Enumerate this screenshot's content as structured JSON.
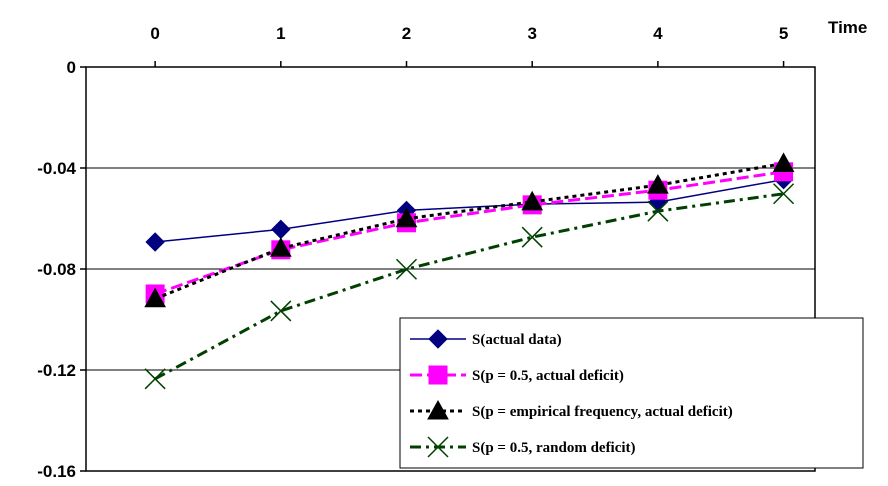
{
  "chart_data": {
    "type": "line",
    "title": "",
    "xlabel": "Time",
    "ylabel": "",
    "x": [
      0,
      1,
      2,
      3,
      4,
      5
    ],
    "x_tick_labels": [
      "0",
      "1",
      "2",
      "3",
      "4",
      "5"
    ],
    "y_tick_labels": [
      "0",
      "-0.04",
      "-0.08",
      "-0.12",
      "-0.16"
    ],
    "y_ticks": [
      0,
      -0.04,
      -0.08,
      -0.12,
      -0.16
    ],
    "xlim": [
      -0.55,
      5.25
    ],
    "ylim": [
      -0.16,
      0
    ],
    "x_axis_position": "top",
    "grid": "horizontal",
    "legend_position": "bottom-right",
    "series": [
      {
        "name": "S(actual data)",
        "values": [
          -0.0693,
          -0.0643,
          -0.0568,
          -0.0543,
          -0.0535,
          -0.0446
        ],
        "color": "#000080",
        "line": "solid",
        "marker": "diamond"
      },
      {
        "name": "S(p = 0.5, actual deficit)",
        "values": [
          -0.0899,
          -0.0724,
          -0.0617,
          -0.0546,
          -0.0488,
          -0.0415
        ],
        "color": "#FF00FF",
        "line": "dashed",
        "marker": "square"
      },
      {
        "name": "S(p = empirical frequency, actual deficit)",
        "values": [
          -0.0918,
          -0.0718,
          -0.0601,
          -0.0534,
          -0.0468,
          -0.0382
        ],
        "color": "#000000",
        "line": "dotted",
        "marker": "triangle"
      },
      {
        "name": "S(p = 0.5, random deficit)",
        "values": [
          -0.1235,
          -0.0966,
          -0.0801,
          -0.0674,
          -0.0571,
          -0.0502
        ],
        "color": "#004000",
        "line": "dashdot",
        "marker": "x"
      }
    ]
  }
}
